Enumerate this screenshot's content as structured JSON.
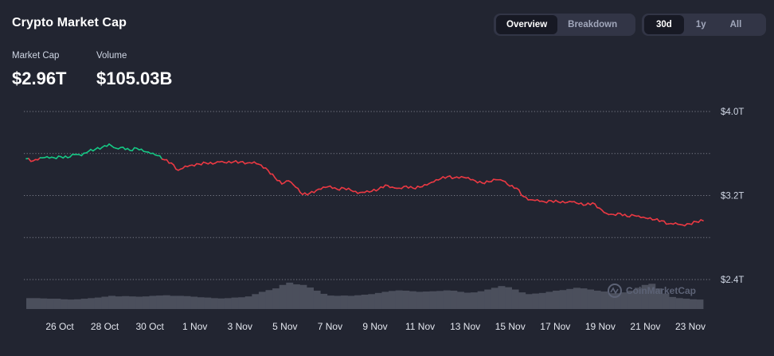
{
  "header": {
    "title": "Crypto Market Cap",
    "view_tabs": [
      {
        "label": "Overview",
        "active": true
      },
      {
        "label": "Breakdown",
        "active": false
      }
    ],
    "range_tabs": [
      {
        "label": "30d",
        "active": true
      },
      {
        "label": "1y",
        "active": false
      },
      {
        "label": "All",
        "active": false
      }
    ]
  },
  "stats": {
    "market_cap_label": "Market Cap",
    "market_cap_value": "$2.96T",
    "volume_label": "Volume",
    "volume_value": "$105.03B"
  },
  "watermark": "CoinMarketCap",
  "colors": {
    "background": "#222531",
    "up": "#16c784",
    "down": "#ea3943",
    "volume": "#4b4f5c",
    "grid": "#c0c4d0"
  },
  "chart_data": {
    "type": "line",
    "title": "",
    "ylim": [
      2.4,
      4.0
    ],
    "yticks": [
      "$4.0T",
      "$3.2T",
      "$2.4T"
    ],
    "xticks": [
      "26 Oct",
      "28 Oct",
      "30 Oct",
      "1 Nov",
      "3 Nov",
      "5 Nov",
      "7 Nov",
      "9 Nov",
      "11 Nov",
      "13 Nov",
      "15 Nov",
      "17 Nov",
      "19 Nov",
      "21 Nov",
      "23 Nov"
    ],
    "grid": true,
    "baseline": 3.55,
    "series": [
      {
        "values": [
          3.55,
          3.53,
          3.56,
          3.57,
          3.56,
          3.57,
          3.56,
          3.59,
          3.58,
          3.62,
          3.64,
          3.66,
          3.69,
          3.65,
          3.66,
          3.63,
          3.65,
          3.62,
          3.6,
          3.58,
          3.54,
          3.51,
          3.44,
          3.48,
          3.49,
          3.5,
          3.51,
          3.5,
          3.52,
          3.51,
          3.52,
          3.52,
          3.51,
          3.52,
          3.49,
          3.44,
          3.37,
          3.31,
          3.34,
          3.28,
          3.21,
          3.22,
          3.25,
          3.28,
          3.29,
          3.26,
          3.27,
          3.25,
          3.22,
          3.23,
          3.24,
          3.26,
          3.3,
          3.28,
          3.27,
          3.29,
          3.27,
          3.28,
          3.3,
          3.33,
          3.36,
          3.38,
          3.37,
          3.38,
          3.37,
          3.34,
          3.32,
          3.33,
          3.35,
          3.34,
          3.29,
          3.27,
          3.19,
          3.16,
          3.16,
          3.14,
          3.15,
          3.14,
          3.13,
          3.14,
          3.12,
          3.11,
          3.13,
          3.08,
          3.03,
          3.02,
          3.03,
          3.0,
          3.01,
          2.99,
          2.98,
          2.97,
          2.96,
          2.93,
          2.94,
          2.92,
          2.93,
          2.95,
          2.96
        ]
      }
    ],
    "volume": [
      0.38,
      0.38,
      0.37,
      0.36,
      0.36,
      0.34,
      0.33,
      0.34,
      0.36,
      0.38,
      0.4,
      0.43,
      0.46,
      0.44,
      0.45,
      0.44,
      0.43,
      0.44,
      0.46,
      0.47,
      0.48,
      0.46,
      0.46,
      0.45,
      0.43,
      0.41,
      0.4,
      0.38,
      0.37,
      0.38,
      0.4,
      0.41,
      0.44,
      0.52,
      0.6,
      0.66,
      0.72,
      0.84,
      0.92,
      0.86,
      0.84,
      0.75,
      0.64,
      0.53,
      0.47,
      0.46,
      0.47,
      0.46,
      0.48,
      0.5,
      0.52,
      0.56,
      0.6,
      0.63,
      0.65,
      0.64,
      0.62,
      0.6,
      0.61,
      0.62,
      0.63,
      0.65,
      0.64,
      0.6,
      0.57,
      0.58,
      0.62,
      0.68,
      0.74,
      0.8,
      0.76,
      0.68,
      0.58,
      0.52,
      0.54,
      0.56,
      0.6,
      0.64,
      0.66,
      0.7,
      0.74,
      0.72,
      0.68,
      0.64,
      0.61,
      0.55,
      0.55,
      0.58,
      0.64,
      0.74,
      0.84,
      0.88,
      0.72,
      0.54,
      0.42,
      0.38,
      0.36,
      0.34,
      0.33
    ]
  }
}
